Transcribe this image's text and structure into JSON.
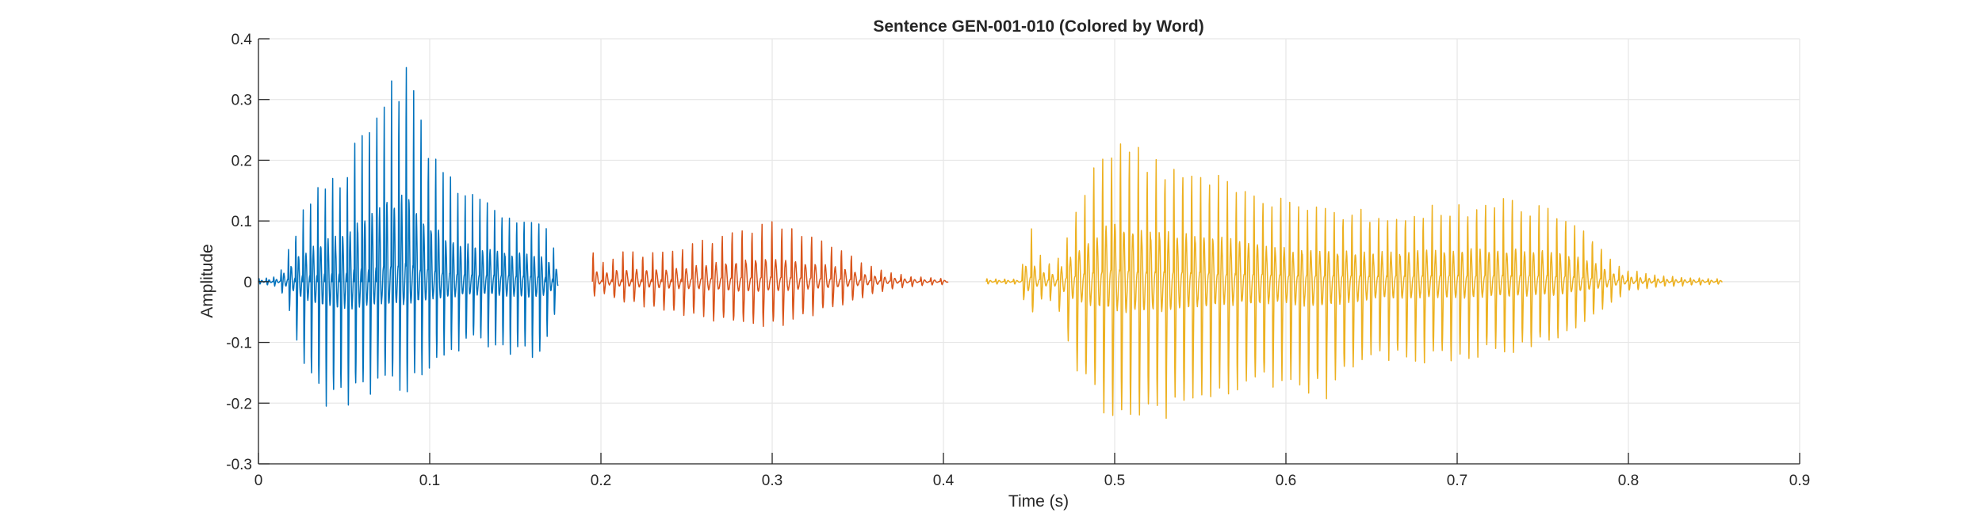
{
  "chart_data": {
    "type": "line",
    "title": "Sentence GEN-001-010 (Colored by Word)",
    "xlabel": "Time (s)",
    "ylabel": "Amplitude",
    "xlim": [
      0,
      0.9
    ],
    "ylim": [
      -0.3,
      0.4
    ],
    "x_ticks": [
      0,
      0.1,
      0.2,
      0.3,
      0.4,
      0.5,
      0.6,
      0.7,
      0.8,
      0.9
    ],
    "y_ticks": [
      -0.3,
      -0.2,
      -0.1,
      0,
      0.1,
      0.2,
      0.3,
      0.4
    ],
    "x_tick_labels": [
      "0",
      "0.1",
      "0.2",
      "0.3",
      "0.4",
      "0.5",
      "0.6",
      "0.7",
      "0.8",
      "0.9"
    ],
    "y_tick_labels": [
      "-0.3",
      "-0.2",
      "-0.1",
      "0",
      "0.1",
      "0.2",
      "0.3",
      "0.4"
    ],
    "grid": true,
    "legend": false,
    "series": [
      {
        "color": "#0072BD",
        "start": 0.0,
        "end": 0.175,
        "cycle_period": 0.0043,
        "envelope": {
          "t": [
            0.0,
            0.012,
            0.018,
            0.025,
            0.035,
            0.05,
            0.065,
            0.08,
            0.085,
            0.095,
            0.11,
            0.13,
            0.15,
            0.165,
            0.175
          ],
          "pos": [
            0.005,
            0.01,
            0.06,
            0.12,
            0.16,
            0.2,
            0.3,
            0.35,
            0.38,
            0.27,
            0.18,
            0.14,
            0.12,
            0.11,
            0.05
          ],
          "neg": [
            -0.005,
            -0.01,
            -0.06,
            -0.15,
            -0.23,
            -0.25,
            -0.22,
            -0.2,
            -0.23,
            -0.18,
            -0.14,
            -0.12,
            -0.14,
            -0.15,
            -0.05
          ]
        }
      },
      {
        "color": "#D95319",
        "start": 0.195,
        "end": 0.403,
        "cycle_period": 0.0058,
        "envelope": {
          "t": [
            0.195,
            0.2,
            0.21,
            0.24,
            0.26,
            0.28,
            0.3,
            0.32,
            0.34,
            0.355,
            0.37,
            0.385,
            0.403
          ],
          "pos": [
            0.06,
            0.03,
            0.05,
            0.05,
            0.07,
            0.09,
            0.1,
            0.08,
            0.06,
            0.03,
            0.015,
            0.008,
            0.005
          ],
          "neg": [
            -0.03,
            -0.02,
            -0.04,
            -0.06,
            -0.07,
            -0.09,
            -0.09,
            -0.07,
            -0.05,
            -0.03,
            -0.015,
            -0.008,
            -0.005
          ]
        }
      },
      {
        "color": "#EDB120",
        "start": 0.425,
        "end": 0.855,
        "cycle_period": 0.0052,
        "envelope": {
          "t": [
            0.425,
            0.445,
            0.45,
            0.455,
            0.465,
            0.48,
            0.5,
            0.52,
            0.54,
            0.56,
            0.6,
            0.62,
            0.65,
            0.7,
            0.73,
            0.76,
            0.78,
            0.79,
            0.8,
            0.82,
            0.855
          ],
          "pos": [
            0.005,
            0.005,
            0.11,
            0.05,
            0.03,
            0.15,
            0.25,
            0.21,
            0.2,
            0.18,
            0.14,
            0.13,
            0.12,
            0.13,
            0.14,
            0.12,
            0.08,
            0.04,
            0.02,
            0.01,
            0.005
          ],
          "neg": [
            -0.005,
            -0.005,
            -0.09,
            -0.04,
            -0.04,
            -0.2,
            -0.28,
            -0.28,
            -0.25,
            -0.22,
            -0.2,
            -0.23,
            -0.16,
            -0.15,
            -0.14,
            -0.12,
            -0.07,
            -0.04,
            -0.02,
            -0.01,
            -0.005
          ]
        }
      }
    ]
  }
}
